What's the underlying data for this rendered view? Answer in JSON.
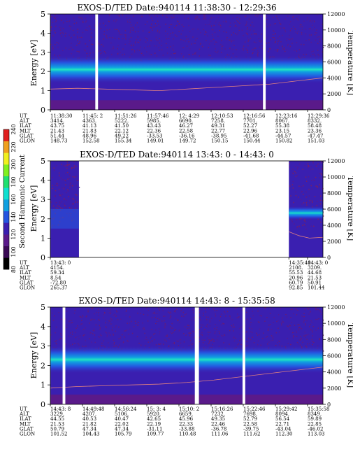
{
  "colorbar": {
    "label": "Second Harmonic Current",
    "ticks": [
      "80",
      "100",
      "120",
      "140",
      "160",
      "180",
      "200",
      "220",
      "240"
    ],
    "colors": [
      "#000000",
      "#3a0a55",
      "#5a1a8a",
      "#3a1fb0",
      "#2555e0",
      "#10a0e0",
      "#10e0d0",
      "#20e070",
      "#80f020",
      "#f0f020",
      "#f0a020",
      "#e02020"
    ]
  },
  "chart_data": [
    {
      "type": "heatmap",
      "title": "EXOS-D/TED   Date:940114   11:38:30 - 12:29:36",
      "ylabel": "Energy [eV]",
      "ylabel_right": "Temperature [K]",
      "ylim": [
        0,
        5
      ],
      "ylim_right": [
        0,
        12000
      ],
      "yticks": [
        "0",
        "1",
        "2",
        "3",
        "4",
        "5"
      ],
      "yticks_right": [
        "0",
        "2000",
        "4000",
        "6000",
        "8000",
        "10000",
        "12000"
      ],
      "band_center_eV": 2.1,
      "temperature_K_approx": [
        2600,
        2700,
        2600,
        2500,
        2400,
        2600,
        2800,
        3000,
        3200,
        3600,
        4000
      ],
      "gaps": [
        [
          0.165,
          0.175
        ],
        [
          0.78,
          0.79
        ]
      ],
      "orbit_table": {
        "row_labels": [
          "UT",
          "ALT",
          "ILAT",
          "MLT",
          "GLAT",
          "GLON"
        ],
        "columns": [
          {
            "UT": "11:38:30",
            "ALT": "3414.",
            "ILAT": "43.75",
            "MLT": "21.43",
            "GLAT": "51.44",
            "GLON": "148.73"
          },
          {
            "UT": "11:45: 2",
            "ALT": "4363.",
            "ILAT": "41.13",
            "MLT": "21.83",
            "GLAT": "48.96",
            "GLON": "152.58"
          },
          {
            "UT": "11:51:26",
            "ALT": "5222.",
            "ILAT": "41.50",
            "MLT": "22.12",
            "GLAT": "49.22",
            "GLON": "155.34"
          },
          {
            "UT": "11:57:46",
            "ALT": "5985.",
            "ILAT": "43.43",
            "MLT": "22.36",
            "GLAT": "-33.53",
            "GLON": "149.01"
          },
          {
            "UT": "12: 4:29",
            "ALT": "6690.",
            "ILAT": "46.27",
            "MLT": "22.58",
            "GLAT": "-36.16",
            "GLON": "149.72"
          },
          {
            "UT": "12:10:53",
            "ALT": "7258.",
            "ILAT": "49.31",
            "MLT": "22.77",
            "GLAT": "-38.95",
            "GLON": "150.15"
          },
          {
            "UT": "12:16:56",
            "ALT": "7701.",
            "ILAT": "52.27",
            "MLT": "22.96",
            "GLAT": "-41.68",
            "GLON": "150.44"
          },
          {
            "UT": "12:23:16",
            "ALT": "8067.",
            "ILAT": "55.38",
            "MLT": "23.15",
            "GLAT": "-44.57",
            "GLON": "150.82"
          },
          {
            "UT": "12:29:36",
            "ALT": "8332.",
            "ILAT": "58.48",
            "MLT": "23.36",
            "GLAT": "-47.47",
            "GLON": "151.03"
          }
        ]
      }
    },
    {
      "type": "heatmap",
      "title": "EXOS-D/TED   Date:940114   13:43: 0 - 14:43: 0",
      "ylabel": "Energy [eV]",
      "ylabel_right": "Temperature [K]",
      "ylim": [
        0,
        5
      ],
      "ylim_right": [
        0,
        12000
      ],
      "yticks": [
        "0",
        "1",
        "2",
        "3",
        "4",
        "5"
      ],
      "yticks_right": [
        "0",
        "2000",
        "4000",
        "6000",
        "8000",
        "10000",
        "12000"
      ],
      "data_segments": [
        [
          0.0,
          0.105
        ],
        [
          0.875,
          1.0
        ]
      ],
      "orbit_table": {
        "row_labels": [
          "UT",
          "ALT",
          "ILAT",
          "MLT",
          "GLAT",
          "GLON"
        ],
        "columns": [
          {
            "UT": "13:43: 0",
            "ALT": "4154.",
            "ILAT": "59.34",
            "MLT": "8.54",
            "GLAT": "-72.80",
            "GLON": "265.37"
          },
          {
            "UT": "14:35:40",
            "ALT": "2108.",
            "ILAT": "55.53",
            "MLT": "20.96",
            "GLAT": "60.79",
            "GLON": "92.85"
          },
          {
            "UT": "14:43: 0",
            "ALT": "3209.",
            "ILAT": "44.68",
            "MLT": "21.53",
            "GLAT": "50.91",
            "GLON": "101.44"
          }
        ]
      }
    },
    {
      "type": "heatmap",
      "title": "EXOS-D/TED   Date:940114   14:43: 8 - 15:35:58",
      "ylabel": "Energy [eV]",
      "ylabel_right": "Temperature [K]",
      "ylim": [
        0,
        5
      ],
      "ylim_right": [
        0,
        12000
      ],
      "yticks": [
        "0",
        "1",
        "2",
        "3",
        "4",
        "5"
      ],
      "yticks_right": [
        "0",
        "2000",
        "4000",
        "6000",
        "8000",
        "10000",
        "12000"
      ],
      "band_center_eV": 2.3,
      "temperature_K_approx": [
        2000,
        2200,
        2300,
        2400,
        2500,
        2700,
        3000,
        3400,
        3800,
        4200,
        4600
      ],
      "gaps": [
        [
          0.045,
          0.055
        ],
        [
          0.53,
          0.545
        ],
        [
          0.705,
          0.715
        ]
      ],
      "orbit_table": {
        "row_labels": [
          "UT",
          "ALT",
          "ILAT",
          "MLT",
          "GLAT",
          "GLON"
        ],
        "columns": [
          {
            "UT": "14:43: 8",
            "ALT": "3229.",
            "ILAT": "44.55",
            "MLT": "21.53",
            "GLAT": "50.79",
            "GLON": "101.52"
          },
          {
            "UT": "14:49:48",
            "ALT": "4207.",
            "ILAT": "40.53",
            "MLT": "21.82",
            "GLAT": "47.34",
            "GLON": "104.43"
          },
          {
            "UT": "14:56:24",
            "ALT": "5106.",
            "ILAT": "40.47",
            "MLT": "22.02",
            "GLAT": "47.34",
            "GLON": "105.79"
          },
          {
            "UT": "15: 3: 4",
            "ALT": "5920.",
            "ILAT": "42.65",
            "MLT": "22.19",
            "GLAT": "-31.11",
            "GLON": "109.77"
          },
          {
            "UT": "15:10: 2",
            "ALT": "6659.",
            "ILAT": "45.96",
            "MLT": "22.33",
            "GLAT": "-33.88",
            "GLON": "110.48"
          },
          {
            "UT": "15:16:26",
            "ALT": "7232.",
            "ILAT": "49.35",
            "MLT": "22.46",
            "GLAT": "-36.78",
            "GLON": "111.06"
          },
          {
            "UT": "15:22:46",
            "ALT": "7698.",
            "ILAT": "52.79",
            "MLT": "22.58",
            "GLAT": "-39.75",
            "GLON": "111.62"
          },
          {
            "UT": "15:29:42",
            "ALT": "8094.",
            "ILAT": "56.54",
            "MLT": "22.71",
            "GLAT": "-43.04",
            "GLON": "112.30"
          },
          {
            "UT": "15:35:58",
            "ALT": "8349.",
            "ILAT": "59.89",
            "MLT": "22.85",
            "GLAT": "-46.02",
            "GLON": "113.03"
          }
        ]
      }
    }
  ]
}
